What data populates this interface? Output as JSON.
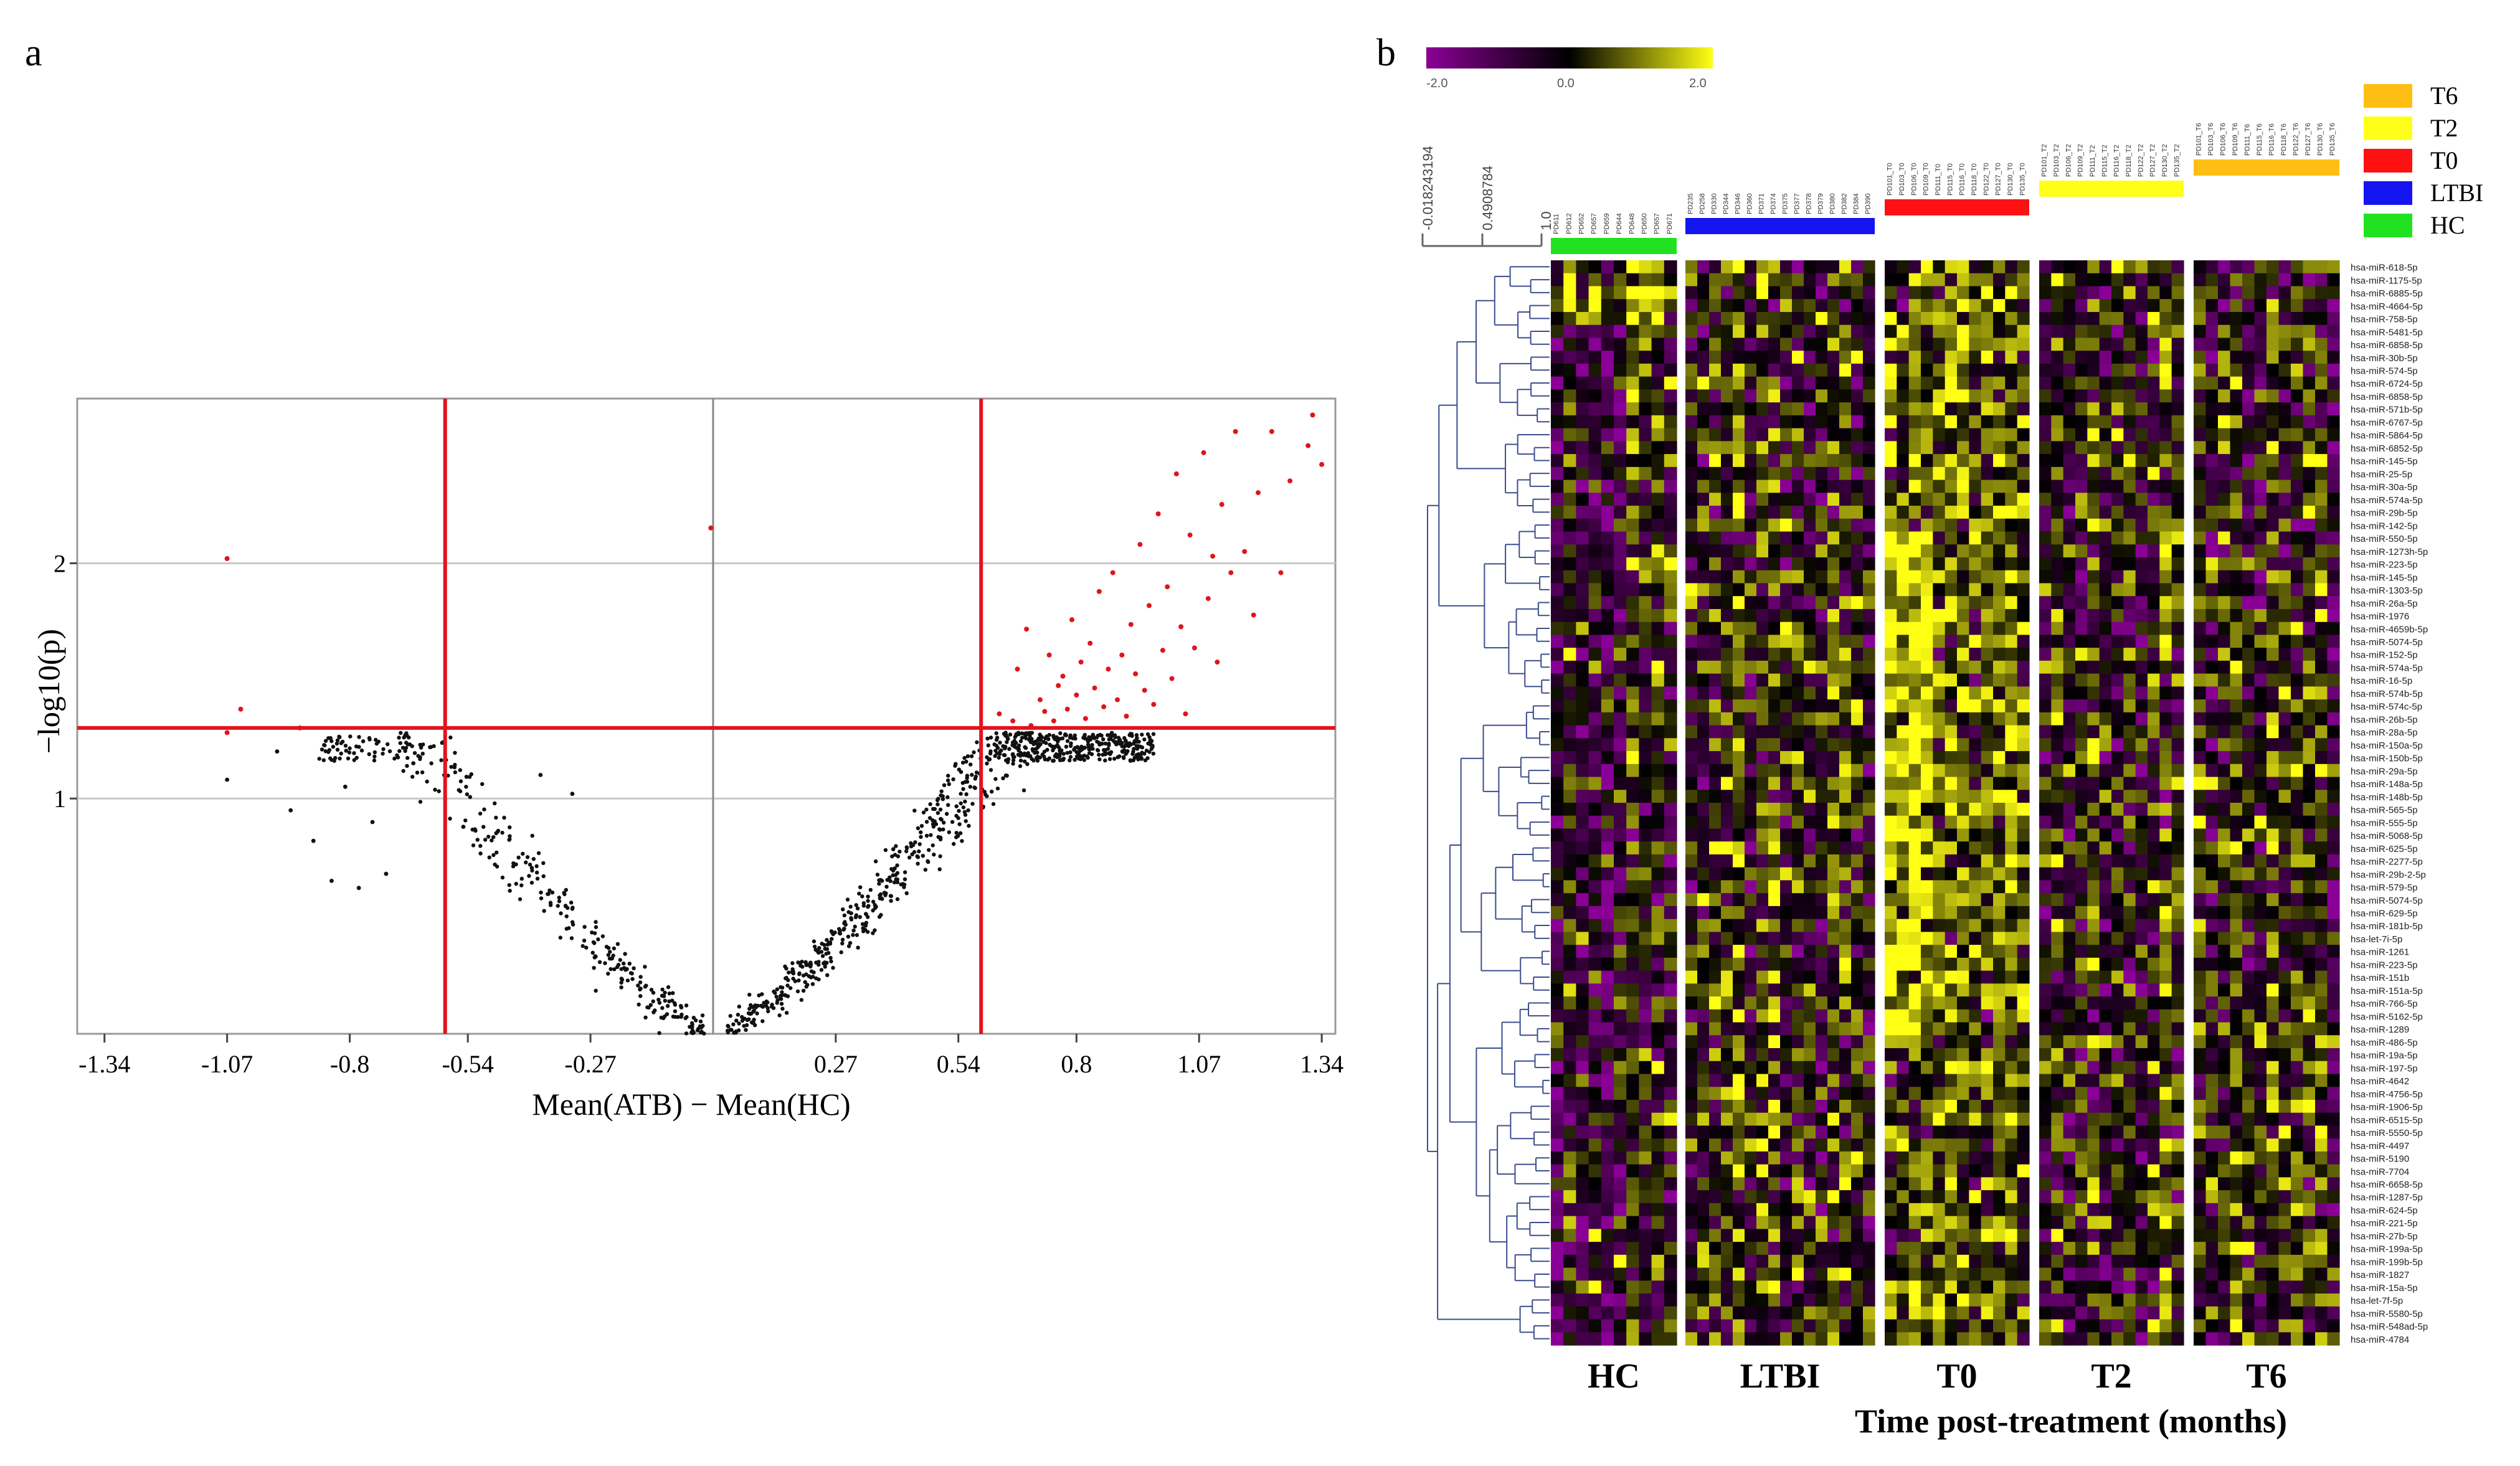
{
  "figure": {
    "panel_a_label": "a",
    "panel_b_label": "b"
  },
  "chart_data": [
    {
      "type": "scatter",
      "panel": "a",
      "title": "",
      "xlabel": "Mean(ATB) − Mean(HC)",
      "ylabel": "−log10(p)",
      "xlim": [
        -1.4,
        1.37
      ],
      "ylim": [
        0,
        2.7
      ],
      "x_ticks": [
        -1.34,
        -1.07,
        -0.8,
        -0.54,
        -0.27,
        0.27,
        0.54,
        0.8,
        1.07,
        1.34
      ],
      "x_tick_labels": [
        "-1.34",
        "-1.07",
        "-0.8",
        "-0.54",
        "-0.27",
        "0.27",
        "0.54",
        "0.8",
        "1.07",
        "1.34"
      ],
      "y_ticks": [
        1,
        2
      ],
      "y_tick_labels": [
        "1",
        "2"
      ],
      "grid": true,
      "threshold_lines": {
        "x": [
          -0.59,
          0.59
        ],
        "y": 1.3
      },
      "colors": {
        "significant": "#e0141c",
        "not_significant": "#111111",
        "threshold": "#e0141c",
        "grid": "#c8c8c8",
        "center_line": "#888888"
      },
      "significant_points": [
        [
          -1.07,
          2.02
        ],
        [
          -1.04,
          1.38
        ],
        [
          -1.07,
          1.28
        ],
        [
          -0.91,
          1.3
        ],
        [
          -0.005,
          2.15
        ],
        [
          0.63,
          1.36
        ],
        [
          0.66,
          1.33
        ],
        [
          0.67,
          1.55
        ],
        [
          0.69,
          1.72
        ],
        [
          0.7,
          1.31
        ],
        [
          0.72,
          1.42
        ],
        [
          0.73,
          1.37
        ],
        [
          0.74,
          1.61
        ],
        [
          0.75,
          1.33
        ],
        [
          0.76,
          1.48
        ],
        [
          0.77,
          1.52
        ],
        [
          0.78,
          1.38
        ],
        [
          0.79,
          1.76
        ],
        [
          0.8,
          1.44
        ],
        [
          0.81,
          1.58
        ],
        [
          0.82,
          1.34
        ],
        [
          0.83,
          1.66
        ],
        [
          0.84,
          1.47
        ],
        [
          0.85,
          1.88
        ],
        [
          0.86,
          1.39
        ],
        [
          0.87,
          1.55
        ],
        [
          0.88,
          1.96
        ],
        [
          0.89,
          1.42
        ],
        [
          0.9,
          1.61
        ],
        [
          0.91,
          1.35
        ],
        [
          0.92,
          1.74
        ],
        [
          0.93,
          1.53
        ],
        [
          0.94,
          2.08
        ],
        [
          0.95,
          1.46
        ],
        [
          0.96,
          1.82
        ],
        [
          0.97,
          1.4
        ],
        [
          0.98,
          2.21
        ],
        [
          0.99,
          1.63
        ],
        [
          1.0,
          1.9
        ],
        [
          1.01,
          1.51
        ],
        [
          1.02,
          2.38
        ],
        [
          1.03,
          1.73
        ],
        [
          1.04,
          1.36
        ],
        [
          1.05,
          2.12
        ],
        [
          1.06,
          1.64
        ],
        [
          1.08,
          2.47
        ],
        [
          1.09,
          1.85
        ],
        [
          1.1,
          2.03
        ],
        [
          1.11,
          1.58
        ],
        [
          1.12,
          2.25
        ],
        [
          1.14,
          1.96
        ],
        [
          1.15,
          2.56
        ],
        [
          1.17,
          2.05
        ],
        [
          1.19,
          1.78
        ],
        [
          1.2,
          2.3
        ],
        [
          1.23,
          2.56
        ],
        [
          1.25,
          1.96
        ],
        [
          1.27,
          2.35
        ],
        [
          1.31,
          2.5
        ],
        [
          1.32,
          2.63
        ],
        [
          1.34,
          2.42
        ]
      ]
    },
    {
      "type": "heatmap",
      "panel": "b",
      "title": "",
      "xlabel": "Time post-treatment (months)",
      "colorbar": {
        "colors": [
          "#8a0096",
          "#000000",
          "#ffff14"
        ],
        "ticks": [
          "-2.0",
          "0.0",
          "2.0"
        ]
      },
      "dendrogram_scale": [
        "-0.018243194",
        "0.4908784",
        "1.0"
      ],
      "groups": [
        {
          "name": "HC",
          "color": "#21e221",
          "n": 10,
          "mean": -0.35
        },
        {
          "name": "LTBI",
          "color": "#1414f0",
          "n": 16,
          "mean": 0.2
        },
        {
          "name": "T0",
          "color": "#ff1111",
          "n": 12,
          "mean": 0.7
        },
        {
          "name": "T2",
          "color": "#ffff1a",
          "n": 12,
          "mean": 0.05
        },
        {
          "name": "T6",
          "color": "#ffbe14",
          "n": 12,
          "mean": -0.1
        }
      ],
      "legend": [
        {
          "name": "T6",
          "color": "#ffbe14"
        },
        {
          "name": "T2",
          "color": "#ffff1a"
        },
        {
          "name": "T0",
          "color": "#ff1111"
        },
        {
          "name": "LTBI",
          "color": "#1414f0"
        },
        {
          "name": "HC",
          "color": "#21e221"
        }
      ],
      "sample_labels": [
        "PD611",
        "PD612",
        "PD652",
        "PD657",
        "PD659",
        "PD644",
        "PD648",
        "PD650",
        "PD657",
        "PD671",
        "PD235",
        "PD258",
        "PD330",
        "PD344",
        "PD346",
        "PD360",
        "PD371",
        "PD374",
        "PD375",
        "PD377",
        "PD378",
        "PD379",
        "PD380",
        "PD382",
        "PD384",
        "PD390",
        "PD101_T0",
        "PD103_T0",
        "PD106_T0",
        "PD109_T0",
        "PD111_T0",
        "PD115_T0",
        "PD116_T0",
        "PD118_T0",
        "PD122_T0",
        "PD127_T0",
        "PD130_T0",
        "PD135_T0",
        "PD101_T2",
        "PD103_T2",
        "PD106_T2",
        "PD109_T2",
        "PD111_T2",
        "PD115_T2",
        "PD116_T2",
        "PD118_T2",
        "PD122_T2",
        "PD127_T2",
        "PD130_T2",
        "PD135_T2",
        "PD101_T6",
        "PD103_T6",
        "PD106_T6",
        "PD109_T6",
        "PD111_T6",
        "PD115_T6",
        "PD116_T6",
        "PD118_T6",
        "PD122_T6",
        "PD127_T6",
        "PD130_T6",
        "PD135_T6"
      ],
      "row_labels": [
        "hsa-miR-618-5p",
        "hsa-miR-1175-5p",
        "hsa-miR-6885-5p",
        "hsa-miR-4664-5p",
        "hsa-miR-758-5p",
        "hsa-miR-5481-5p",
        "hsa-miR-6858-5p",
        "hsa-miR-30b-5p",
        "hsa-miR-574-5p",
        "hsa-miR-6724-5p",
        "hsa-miR-6858-5p",
        "hsa-miR-571b-5p",
        "hsa-miR-6767-5p",
        "hsa-miR-5864-5p",
        "hsa-miR-6852-5p",
        "hsa-miR-145-5p",
        "hsa-miR-25-5p",
        "hsa-miR-30a-5p",
        "hsa-miR-574a-5p",
        "hsa-miR-29b-5p",
        "hsa-miR-142-5p",
        "hsa-miR-550-5p",
        "hsa-miR-1273h-5p",
        "hsa-miR-223-5p",
        "hsa-miR-145-5p",
        "hsa-miR-1303-5p",
        "hsa-miR-26a-5p",
        "hsa-miR-1976",
        "hsa-miR-4659b-5p",
        "hsa-miR-5074-5p",
        "hsa-miR-152-5p",
        "hsa-miR-574a-5p",
        "hsa-miR-16-5p",
        "hsa-miR-574b-5p",
        "hsa-miR-574c-5p",
        "hsa-miR-26b-5p",
        "hsa-miR-28a-5p",
        "hsa-miR-150a-5p",
        "hsa-miR-150b-5p",
        "hsa-miR-29a-5p",
        "hsa-miR-148a-5p",
        "hsa-miR-148b-5p",
        "hsa-miR-565-5p",
        "hsa-miR-555-5p",
        "hsa-miR-5068-5p",
        "hsa-miR-625-5p",
        "hsa-miR-2277-5p",
        "hsa-miR-29b-2-5p",
        "hsa-miR-579-5p",
        "hsa-miR-5074-5p",
        "hsa-miR-629-5p",
        "hsa-miR-181b-5p",
        "hsa-let-7i-5p",
        "hsa-miR-1261",
        "hsa-miR-223-5p",
        "hsa-miR-151b",
        "hsa-miR-151a-5p",
        "hsa-miR-766-5p",
        "hsa-miR-5162-5p",
        "hsa-miR-1289",
        "hsa-miR-486-5p",
        "hsa-miR-19a-5p",
        "hsa-miR-197-5p",
        "hsa-miR-4642",
        "hsa-miR-4756-5p",
        "hsa-miR-1906-5p",
        "hsa-miR-6515-5p",
        "hsa-miR-5550-5p",
        "hsa-miR-4497",
        "hsa-miR-5190",
        "hsa-miR-7704",
        "hsa-miR-6658-5p",
        "hsa-miR-1287-5p",
        "hsa-miR-624-5p",
        "hsa-miR-221-5p",
        "hsa-miR-27b-5p",
        "hsa-miR-199a-5p",
        "hsa-miR-199b-5p",
        "hsa-miR-1827",
        "hsa-miR-15a-5p",
        "hsa-let-7f-5p",
        "hsa-miR-5580-5p",
        "hsa-miR-548ad-5p",
        "hsa-miR-4784"
      ]
    }
  ]
}
